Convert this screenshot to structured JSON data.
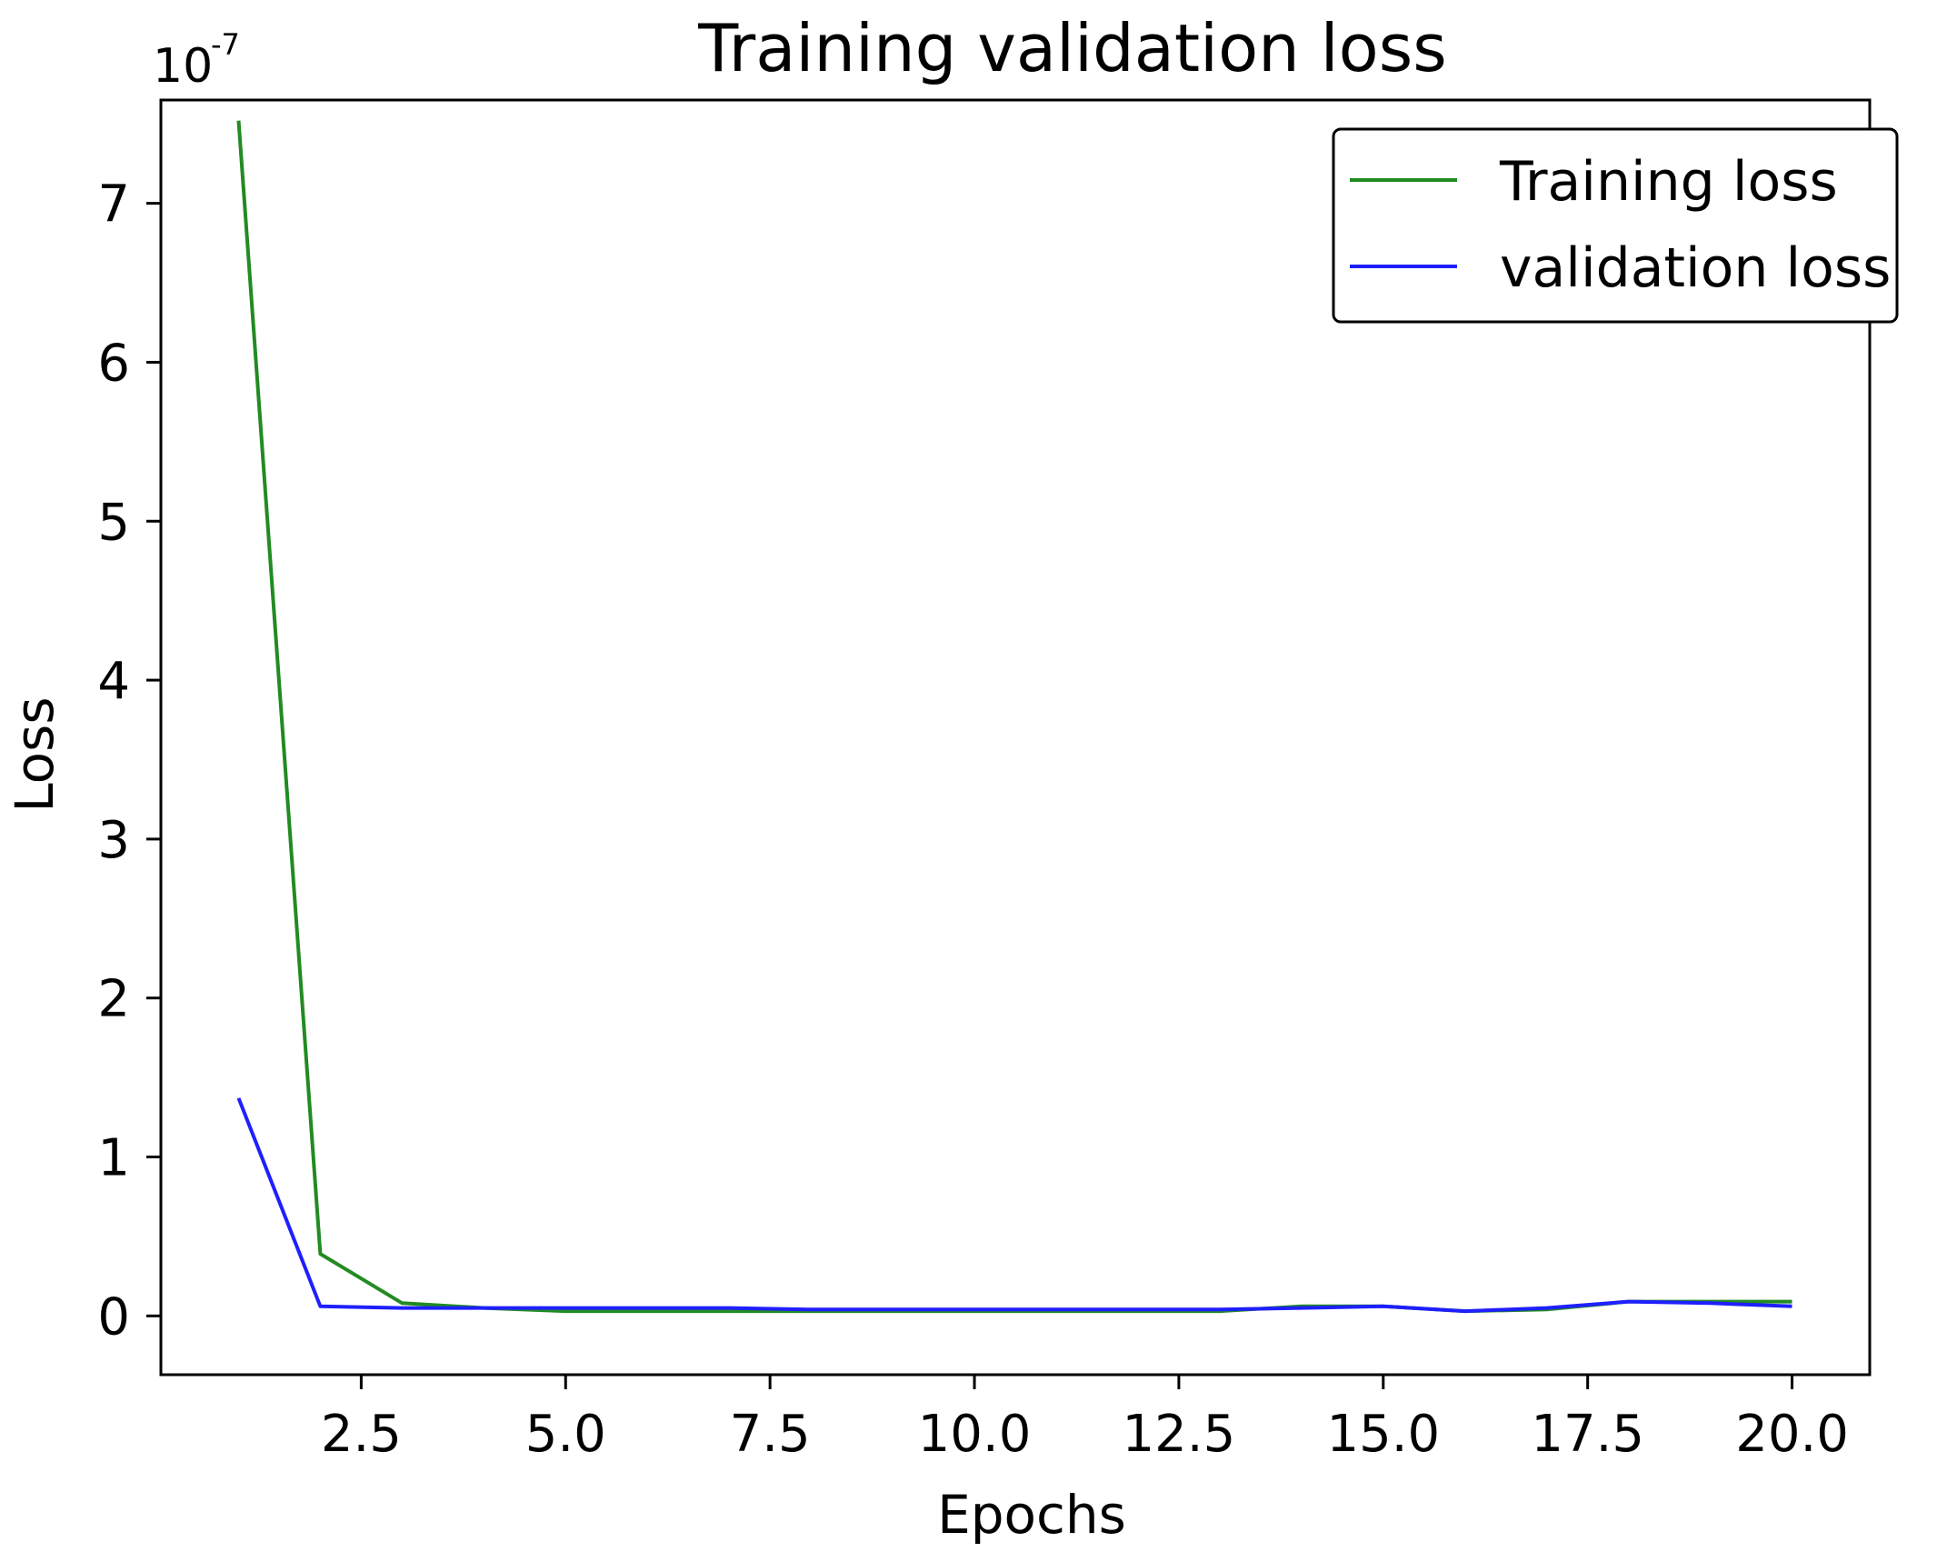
{
  "chart_data": {
    "type": "line",
    "title": "Training validation loss",
    "xlabel": "Epochs",
    "ylabel": "Loss",
    "y_scale_label": "10",
    "y_scale_exponent": "-7",
    "xlim": [
      0.05,
      20.95
    ],
    "ylim": [
      -0.37,
      7.65
    ],
    "x_ticks": [
      2.5,
      5.0,
      7.5,
      10.0,
      12.5,
      15.0,
      17.5,
      20.0
    ],
    "x_tick_labels": [
      "2.5",
      "5.0",
      "7.5",
      "10.0",
      "12.5",
      "15.0",
      "17.5",
      "20.0"
    ],
    "y_ticks": [
      0,
      1,
      2,
      3,
      4,
      5,
      6,
      7
    ],
    "y_tick_labels": [
      "0",
      "1",
      "2",
      "3",
      "4",
      "5",
      "6",
      "7"
    ],
    "grid": false,
    "legend_position": "top-right",
    "x": [
      1,
      2,
      3,
      4,
      5,
      6,
      7,
      8,
      9,
      10,
      11,
      12,
      13,
      14,
      15,
      16,
      17,
      18,
      19,
      20
    ],
    "series": [
      {
        "name": "Training loss",
        "color": "#228b22",
        "values": [
          7.52,
          0.39,
          0.08,
          0.05,
          0.03,
          0.03,
          0.03,
          0.03,
          0.03,
          0.03,
          0.03,
          0.03,
          0.03,
          0.06,
          0.06,
          0.03,
          0.04,
          0.09,
          0.09,
          0.09
        ]
      },
      {
        "name": "validation loss",
        "color": "#1f1fff",
        "values": [
          1.37,
          0.06,
          0.05,
          0.05,
          0.05,
          0.05,
          0.05,
          0.04,
          0.04,
          0.04,
          0.04,
          0.04,
          0.04,
          0.05,
          0.06,
          0.03,
          0.05,
          0.09,
          0.08,
          0.06
        ]
      }
    ]
  }
}
